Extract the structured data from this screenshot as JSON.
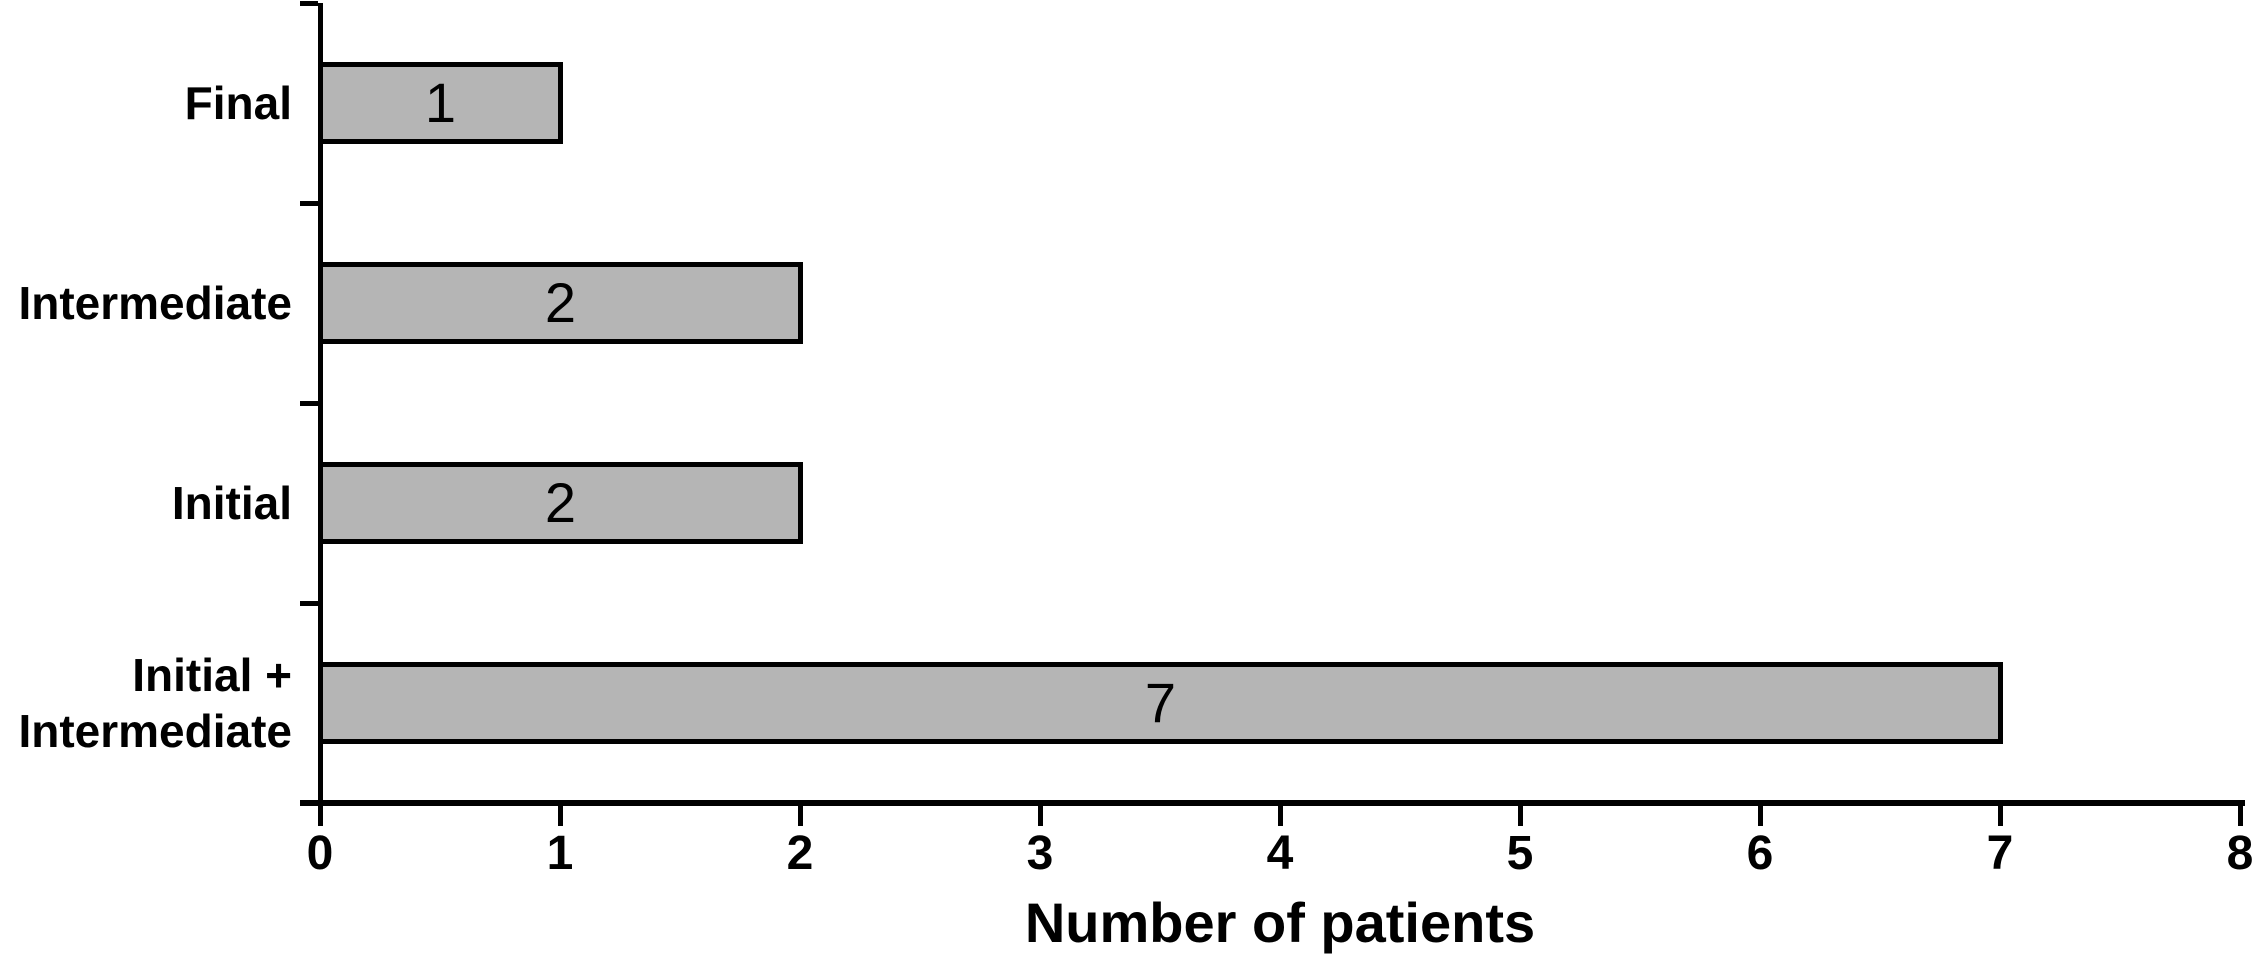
{
  "chart_data": {
    "type": "bar",
    "orientation": "horizontal",
    "title": "",
    "xlabel": "Number of patients",
    "ylabel": "",
    "categories": [
      "Final",
      "Intermediate",
      "Initial",
      "Initial +\nIntermediate"
    ],
    "values": [
      1,
      2,
      2,
      7
    ],
    "value_labels": [
      "1",
      "2",
      "2",
      "7"
    ],
    "xlim": [
      0,
      8
    ],
    "xticks": [
      0,
      1,
      2,
      3,
      4,
      5,
      6,
      7,
      8
    ],
    "grid": false,
    "legend": false,
    "colors": {
      "bar_fill": "#b5b5b5",
      "bar_border": "#000000",
      "axis": "#000000",
      "text": "#000000",
      "background": "#ffffff"
    }
  }
}
